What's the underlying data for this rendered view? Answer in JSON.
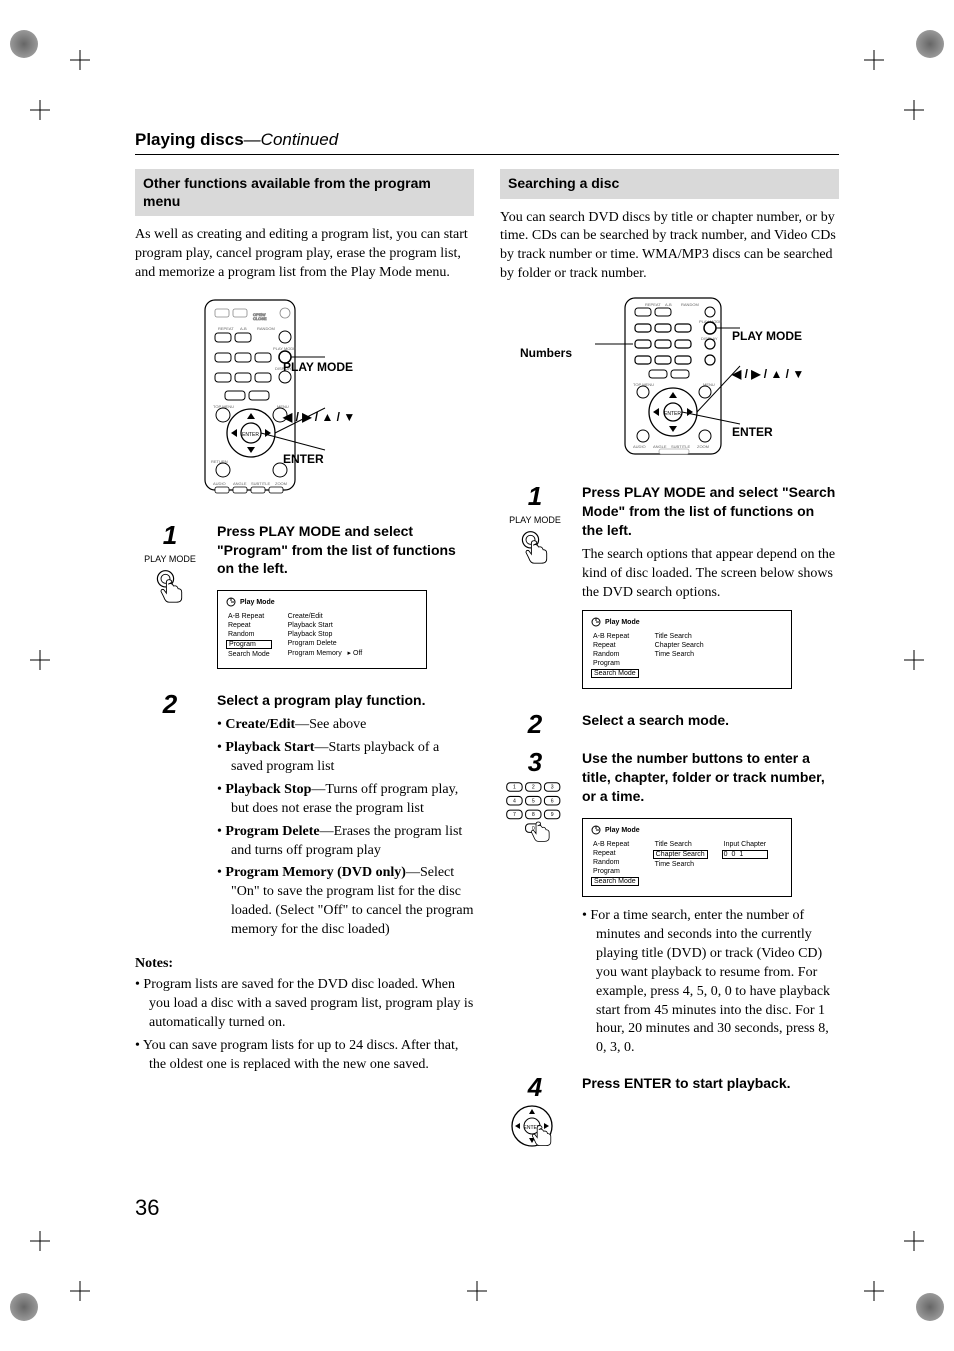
{
  "page_title_bold": "Playing discs",
  "page_title_cont": "—Continued",
  "page_number": "36",
  "left": {
    "section_title": "Other functions available from the program menu",
    "intro": "As well as creating and editing a program list, you can start program play, cancel program play, erase the program list, and memorize a program list from the Play Mode menu.",
    "remote_labels": {
      "play_mode": "PLAY MODE",
      "arrows": "◀ / ▶ / ▲ / ▼",
      "enter": "ENTER"
    },
    "step1": {
      "num": "1",
      "icon_label": "PLAY MODE",
      "head": "Press PLAY MODE and select \"Program\" from the list of functions on the left.",
      "popup": {
        "title": "Play Mode",
        "left_items": [
          "A-B Repeat",
          "Repeat",
          "Random",
          "Program",
          "Search Mode"
        ],
        "selected_left": "Program",
        "right_items": [
          "Create/Edit",
          "Playback Start",
          "Playback Stop",
          "Program Delete",
          "Program Memory"
        ],
        "memory_value": "Off"
      }
    },
    "step2": {
      "num": "2",
      "head": "Select a program play function.",
      "items": [
        {
          "b": "Create/Edit",
          "t": "—See above"
        },
        {
          "b": "Playback Start",
          "t": "—Starts playback of a saved program list"
        },
        {
          "b": "Playback Stop",
          "t": "—Turns off program play, but does not erase the program list"
        },
        {
          "b": "Program Delete",
          "t": "—Erases the program list and turns off program play"
        },
        {
          "b": "Program Memory (DVD only)",
          "t": "—Select \"On\" to save the program list for the disc loaded. (Select \"Off\" to cancel the program memory for the disc loaded)"
        }
      ]
    },
    "notes_head": "Notes:",
    "notes": [
      "Program lists are saved for the DVD disc loaded. When you load a disc with a saved program list, program play is automatically turned on.",
      "You can save program lists for up to 24 discs. After that, the oldest one is replaced with the new one saved."
    ]
  },
  "right": {
    "section_title": "Searching a disc",
    "intro": "You can search DVD discs by title or chapter number, or by time. CDs can be searched by track number, and Video CDs by track number or time. WMA/MP3 discs can be searched by folder or track number.",
    "remote_labels": {
      "numbers": "Numbers",
      "play_mode": "PLAY MODE",
      "arrows": "◀ / ▶ / ▲ / ▼",
      "enter": "ENTER"
    },
    "step1": {
      "num": "1",
      "icon_label": "PLAY MODE",
      "head": "Press PLAY MODE and select \"Search Mode\" from the list of functions on the left.",
      "body": "The search options that appear depend on the kind of disc loaded. The screen below shows the DVD search options.",
      "popup": {
        "title": "Play Mode",
        "left_items": [
          "A-B Repeat",
          "Repeat",
          "Random",
          "Program",
          "Search Mode"
        ],
        "selected_left": "Search Mode",
        "right_items": [
          "Title Search",
          "Chapter Search",
          "Time Search"
        ]
      }
    },
    "step2": {
      "num": "2",
      "head": "Select a search mode."
    },
    "step3": {
      "num": "3",
      "head": "Use the number buttons to enter a title, chapter, folder or track number, or a time.",
      "popup": {
        "title": "Play Mode",
        "left_items": [
          "A-B Repeat",
          "Repeat",
          "Random",
          "Program",
          "Search Mode"
        ],
        "selected_left": "Search Mode",
        "right_items": [
          "Title Search",
          "Chapter Search",
          "Time Search"
        ],
        "selected_right": "Chapter Search",
        "input_label": "Input Chapter",
        "input_value": "0 0 1"
      },
      "bullet": "For a time search, enter the number of minutes and seconds into the currently playing title (DVD) or track (Video CD) you want playback to resume from. For example, press 4, 5, 0, 0 to have playback start from 45 minutes into the disc. For 1 hour, 20 minutes and 30 seconds, press 8, 0, 3, 0."
    },
    "step4": {
      "num": "4",
      "head": "Press ENTER to start playback."
    }
  }
}
